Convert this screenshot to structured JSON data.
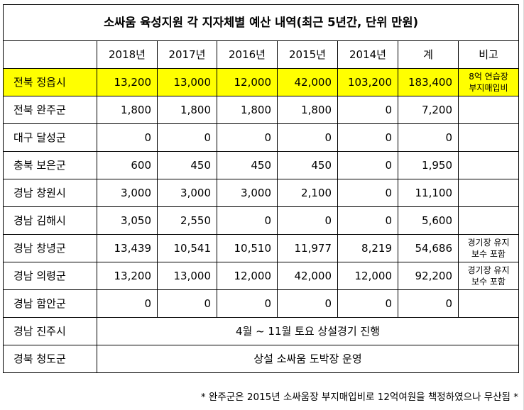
{
  "title": "소싸움 육성지원 각 지자체별 예산 내역(최근 5년간, 단위 만원)",
  "headers": [
    "",
    "2018년",
    "2017년",
    "2016년",
    "2015년",
    "2014년",
    "계",
    "비고"
  ],
  "rows": [
    {
      "name": "전북 정읍시",
      "values": [
        "13,200",
        "13,000",
        "12,000",
        "42,000",
        "103,200",
        "183,400"
      ],
      "note": [
        "8억 연습장",
        "부지매입비"
      ],
      "highlight": true
    },
    {
      "name": "전북 완주군",
      "values": [
        "1,800",
        "1,800",
        "1,800",
        "1,800",
        "0",
        "7,200"
      ],
      "note": []
    },
    {
      "name": "대구 달성군",
      "values": [
        "0",
        "0",
        "0",
        "0",
        "0",
        "0"
      ],
      "note": []
    },
    {
      "name": "충북 보은군",
      "values": [
        "600",
        "450",
        "450",
        "450",
        "0",
        "1,950"
      ],
      "note": []
    },
    {
      "name": "경남 창원시",
      "values": [
        "3,000",
        "3,000",
        "3,000",
        "2,100",
        "0",
        "11,100"
      ],
      "note": []
    },
    {
      "name": "경남 김해시",
      "values": [
        "3,050",
        "2,550",
        "0",
        "0",
        "0",
        "5,600"
      ],
      "note": []
    },
    {
      "name": "경남 창녕군",
      "values": [
        "13,439",
        "10,541",
        "10,510",
        "11,977",
        "8,219",
        "54,686"
      ],
      "note": [
        "경기장 유지",
        "보수 포함"
      ]
    },
    {
      "name": "경남 의령군",
      "values": [
        "13,200",
        "13,000",
        "12,000",
        "42,000",
        "12,000",
        "92,200"
      ],
      "note": [
        "경기장 유지",
        "보수 포함"
      ]
    },
    {
      "name": "경남 함안군",
      "values": [
        "0",
        "0",
        "0",
        "0",
        "0",
        "0"
      ],
      "note": []
    }
  ],
  "merged_rows": [
    {
      "name": "경남 진주시",
      "text": "4월 ~ 11월 토요 상설경기 진행"
    },
    {
      "name": "경북 청도군",
      "text": "상설 소싸움 도박장 운영"
    }
  ],
  "footnote": "* 완주군은 2015년 소싸움장 부지매입비로 12억여원을 책정하였으나 무산됨 *",
  "colors": {
    "highlight": "#ffff00",
    "border": "#000000",
    "grid": "#d9d9d9"
  }
}
